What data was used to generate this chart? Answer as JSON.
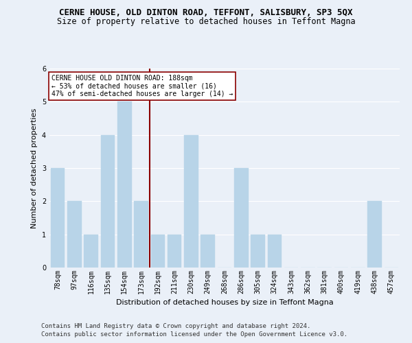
{
  "title": "CERNE HOUSE, OLD DINTON ROAD, TEFFONT, SALISBURY, SP3 5QX",
  "subtitle": "Size of property relative to detached houses in Teffont Magna",
  "xlabel": "Distribution of detached houses by size in Teffont Magna",
  "ylabel": "Number of detached properties",
  "categories": [
    "78sqm",
    "97sqm",
    "116sqm",
    "135sqm",
    "154sqm",
    "173sqm",
    "192sqm",
    "211sqm",
    "230sqm",
    "249sqm",
    "268sqm",
    "286sqm",
    "305sqm",
    "324sqm",
    "343sqm",
    "362sqm",
    "381sqm",
    "400sqm",
    "419sqm",
    "438sqm",
    "457sqm"
  ],
  "values": [
    3,
    2,
    1,
    4,
    5,
    2,
    1,
    1,
    4,
    1,
    0,
    3,
    1,
    1,
    0,
    0,
    0,
    0,
    0,
    2,
    0
  ],
  "bar_color": "#b8d4e8",
  "bar_edge_color": "#b8d4e8",
  "vline_pos": 5.5,
  "vline_color": "#8b0000",
  "annotation_text": "CERNE HOUSE OLD DINTON ROAD: 188sqm\n← 53% of detached houses are smaller (16)\n47% of semi-detached houses are larger (14) →",
  "annotation_box_color": "#ffffff",
  "annotation_box_edge": "#8b0000",
  "ylim": [
    0,
    6
  ],
  "yticks": [
    0,
    1,
    2,
    3,
    4,
    5,
    6
  ],
  "footer1": "Contains HM Land Registry data © Crown copyright and database right 2024.",
  "footer2": "Contains public sector information licensed under the Open Government Licence v3.0.",
  "background_color": "#eaf0f8",
  "plot_background": "#eaf0f8",
  "grid_color": "#ffffff",
  "title_fontsize": 9,
  "subtitle_fontsize": 8.5,
  "axis_label_fontsize": 8,
  "tick_fontsize": 7,
  "annotation_fontsize": 7,
  "footer_fontsize": 6.5
}
